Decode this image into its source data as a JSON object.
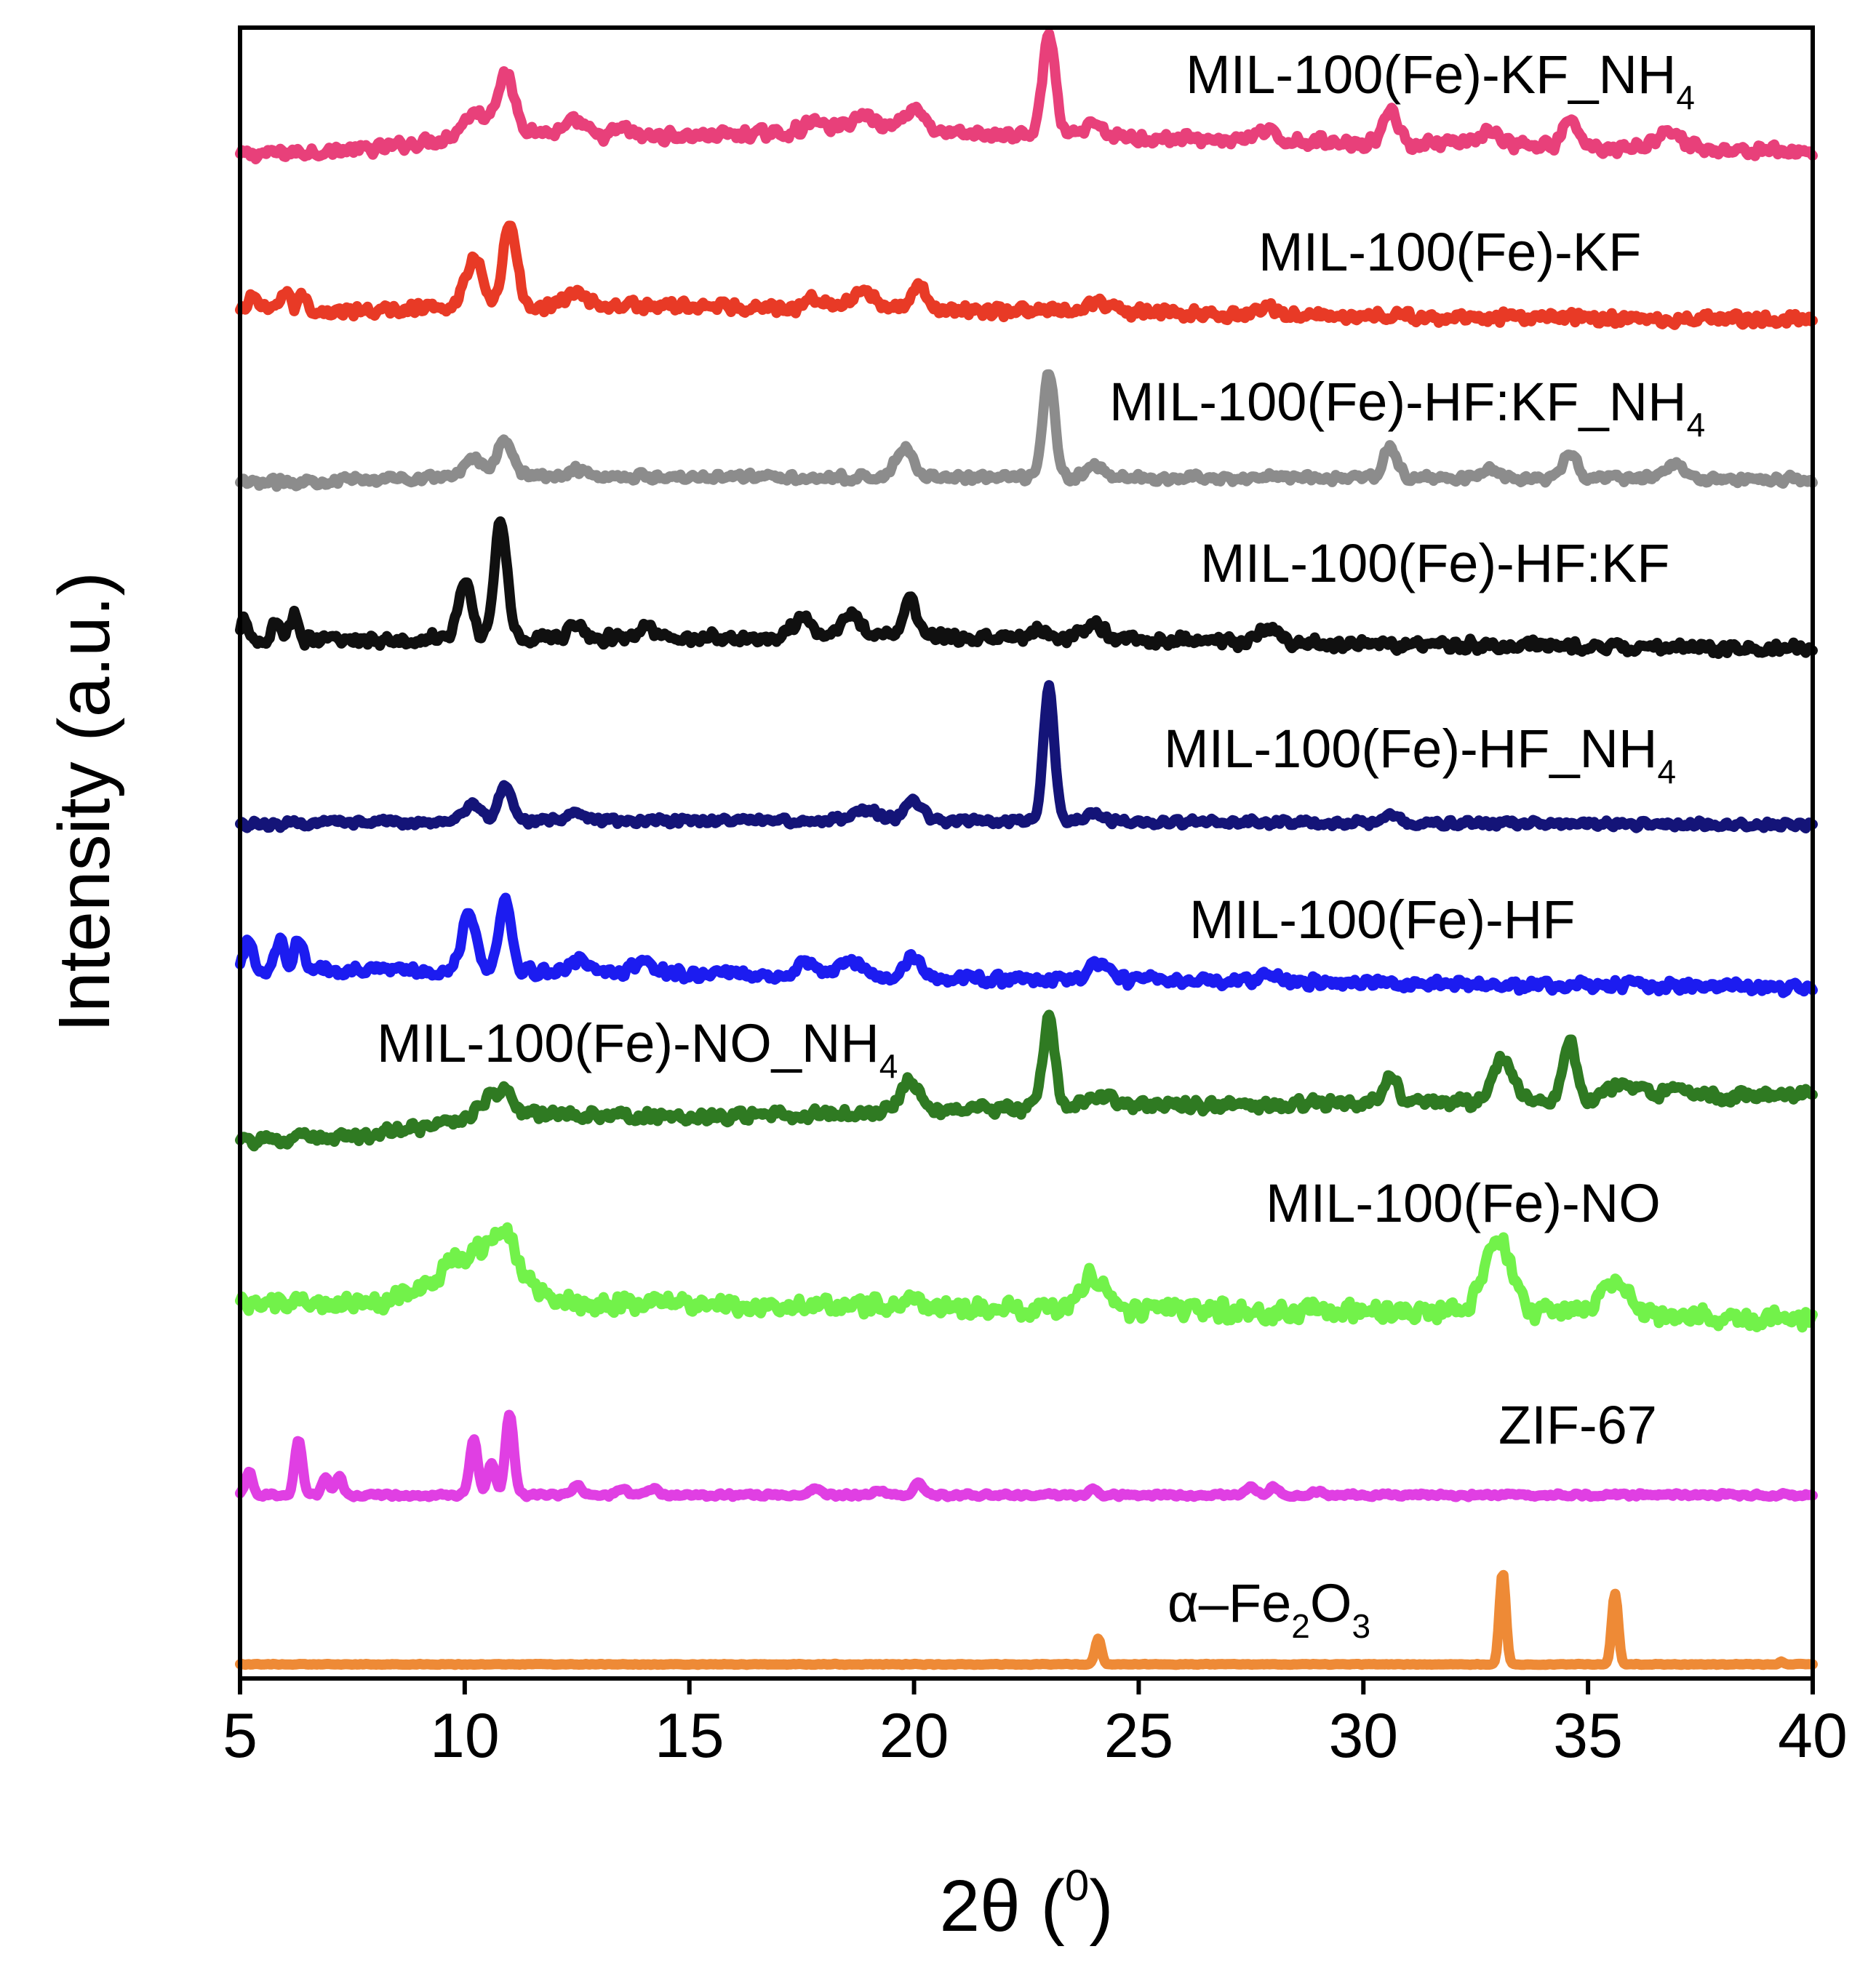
{
  "chart_data": {
    "type": "line",
    "title": "",
    "xlabel": "2θ (⁰)",
    "xlabel_parts": {
      "main": "2θ (",
      "sup": "0",
      "close": ")"
    },
    "ylabel": "Intensity (a.u.)",
    "xlim": [
      5,
      40
    ],
    "xticks": [
      5,
      10,
      15,
      20,
      25,
      30,
      35,
      40
    ],
    "yticks": [],
    "grid": false,
    "legend": "inline labels above each trace",
    "series": [
      {
        "name": "MIL-100(Fe)-KF_NH4",
        "label_main": "MIL-100(Fe)-KF_NH",
        "label_sub": "4",
        "color": "#E8407A",
        "baseline": 8.95,
        "noise": 0.05,
        "drift": [
          [
            5,
            0.0
          ],
          [
            8,
            0.04
          ],
          [
            11,
            0.18
          ],
          [
            13,
            0.12
          ],
          [
            18,
            0.16
          ],
          [
            22,
            0.14
          ],
          [
            28,
            0.1
          ],
          [
            40,
            0.02
          ]
        ],
        "peaks": [
          [
            10.2,
            0.15,
            0.25
          ],
          [
            10.9,
            0.38,
            0.2
          ],
          [
            12.5,
            0.1,
            0.2
          ],
          [
            13.5,
            0.06,
            0.2
          ],
          [
            17.8,
            0.07,
            0.25
          ],
          [
            18.9,
            0.12,
            0.35
          ],
          [
            20.0,
            0.18,
            0.25
          ],
          [
            23.0,
            0.72,
            0.14
          ],
          [
            24.0,
            0.08,
            0.2
          ],
          [
            27.8,
            0.06,
            0.2
          ],
          [
            30.6,
            0.25,
            0.15
          ],
          [
            32.8,
            0.1,
            0.2
          ],
          [
            34.6,
            0.2,
            0.15
          ],
          [
            36.8,
            0.12,
            0.3
          ]
        ]
      },
      {
        "name": "MIL-100(Fe)-KF",
        "label_main": "MIL-100(Fe)-KF",
        "label_sub": "",
        "color": "#E83A26",
        "baseline": 7.78,
        "noise": 0.05,
        "drift": [
          [
            5,
            0.06
          ],
          [
            8,
            0.06
          ],
          [
            10,
            0.1
          ],
          [
            15,
            0.1
          ],
          [
            20,
            0.07
          ],
          [
            25,
            0.05
          ],
          [
            30,
            0.03
          ],
          [
            40,
            0.0
          ]
        ],
        "peaks": [
          [
            5.3,
            0.12,
            0.1
          ],
          [
            6.0,
            0.15,
            0.1
          ],
          [
            6.4,
            0.12,
            0.1
          ],
          [
            10.2,
            0.34,
            0.18
          ],
          [
            11.0,
            0.58,
            0.15
          ],
          [
            12.5,
            0.1,
            0.2
          ],
          [
            17.8,
            0.08,
            0.2
          ],
          [
            18.9,
            0.1,
            0.3
          ],
          [
            20.1,
            0.16,
            0.18
          ],
          [
            24.1,
            0.08,
            0.25
          ],
          [
            27.8,
            0.05,
            0.2
          ]
        ]
      },
      {
        "name": "MIL-100(Fe)-HF:KF_NH4",
        "label_main": "MIL-100(Fe)-HF:KF_NH",
        "label_sub": "4",
        "color": "#8C8C8C",
        "baseline": 6.62,
        "noise": 0.035,
        "drift": [
          [
            5,
            0.0
          ],
          [
            10,
            0.05
          ],
          [
            15,
            0.05
          ],
          [
            20,
            0.04
          ],
          [
            25,
            0.04
          ],
          [
            40,
            0.03
          ]
        ],
        "peaks": [
          [
            10.2,
            0.14,
            0.2
          ],
          [
            10.9,
            0.26,
            0.18
          ],
          [
            12.5,
            0.05,
            0.2
          ],
          [
            19.8,
            0.2,
            0.2
          ],
          [
            23.0,
            0.74,
            0.13
          ],
          [
            24.0,
            0.08,
            0.2
          ],
          [
            30.6,
            0.22,
            0.15
          ],
          [
            32.8,
            0.07,
            0.2
          ],
          [
            34.6,
            0.18,
            0.15
          ],
          [
            36.9,
            0.1,
            0.25
          ]
        ]
      },
      {
        "name": "MIL-100(Fe)-HF:KF",
        "label_main": "MIL-100(Fe)-HF:KF",
        "label_sub": "",
        "color": "#101010",
        "baseline": 5.45,
        "noise": 0.05,
        "drift": [
          [
            5,
            0.05
          ],
          [
            8,
            0.06
          ],
          [
            10,
            0.08
          ],
          [
            14,
            0.07
          ],
          [
            20,
            0.08
          ],
          [
            25,
            0.06
          ],
          [
            30,
            0.03
          ],
          [
            40,
            0.0
          ]
        ],
        "peaks": [
          [
            5.1,
            0.15,
            0.08
          ],
          [
            5.8,
            0.15,
            0.1
          ],
          [
            6.2,
            0.18,
            0.1
          ],
          [
            10.0,
            0.4,
            0.14
          ],
          [
            10.8,
            0.82,
            0.14
          ],
          [
            12.5,
            0.1,
            0.15
          ],
          [
            14.0,
            0.07,
            0.2
          ],
          [
            17.5,
            0.14,
            0.2
          ],
          [
            18.6,
            0.16,
            0.25
          ],
          [
            19.9,
            0.28,
            0.15
          ],
          [
            22.8,
            0.06,
            0.2
          ],
          [
            24.0,
            0.1,
            0.25
          ],
          [
            27.9,
            0.1,
            0.2
          ]
        ]
      },
      {
        "name": "MIL-100(Fe)-HF_NH4",
        "label_main": "MIL-100(Fe)-HF_NH",
        "label_sub": "4",
        "color": "#141478",
        "baseline": 4.2,
        "noise": 0.03,
        "drift": [
          [
            5,
            0.0
          ],
          [
            10,
            0.03
          ],
          [
            15,
            0.03
          ],
          [
            20,
            0.03
          ],
          [
            40,
            0.0
          ]
        ],
        "peaks": [
          [
            10.2,
            0.12,
            0.18
          ],
          [
            10.9,
            0.24,
            0.15
          ],
          [
            12.5,
            0.05,
            0.2
          ],
          [
            18.9,
            0.08,
            0.3
          ],
          [
            20.0,
            0.14,
            0.18
          ],
          [
            23.0,
            0.95,
            0.12
          ],
          [
            24.0,
            0.05,
            0.2
          ],
          [
            30.6,
            0.06,
            0.15
          ]
        ]
      },
      {
        "name": "MIL-100(Fe)-HF",
        "label_main": "MIL-100(Fe)-HF",
        "label_sub": "",
        "color": "#1C1CF0",
        "baseline": 3.05,
        "noise": 0.045,
        "drift": [
          [
            5,
            0.12
          ],
          [
            8,
            0.12
          ],
          [
            10,
            0.12
          ],
          [
            14,
            0.1
          ],
          [
            20,
            0.06
          ],
          [
            25,
            0.05
          ],
          [
            30,
            0.03
          ],
          [
            40,
            0.0
          ]
        ],
        "peaks": [
          [
            5.2,
            0.22,
            0.1
          ],
          [
            5.9,
            0.22,
            0.1
          ],
          [
            6.3,
            0.22,
            0.1
          ],
          [
            10.1,
            0.4,
            0.16
          ],
          [
            10.9,
            0.5,
            0.14
          ],
          [
            12.5,
            0.08,
            0.2
          ],
          [
            14.0,
            0.08,
            0.25
          ],
          [
            17.6,
            0.1,
            0.2
          ],
          [
            18.6,
            0.12,
            0.3
          ],
          [
            20.0,
            0.16,
            0.18
          ],
          [
            24.1,
            0.1,
            0.25
          ],
          [
            27.9,
            0.06,
            0.2
          ]
        ]
      },
      {
        "name": "MIL-100(Fe)-NO_NH4",
        "label_main": "MIL-100(Fe)-NO_NH",
        "label_sub": "4",
        "color": "#2F7A22",
        "baseline": 1.95,
        "noise": 0.05,
        "drift": [
          [
            5,
            0.0
          ],
          [
            8,
            0.06
          ],
          [
            11,
            0.2
          ],
          [
            15,
            0.18
          ],
          [
            20,
            0.22
          ],
          [
            25,
            0.26
          ],
          [
            30,
            0.28
          ],
          [
            35,
            0.3
          ],
          [
            40,
            0.34
          ]
        ],
        "peaks": [
          [
            10.6,
            0.12,
            0.3
          ],
          [
            10.9,
            0.08,
            0.2
          ],
          [
            19.9,
            0.22,
            0.2
          ],
          [
            23.0,
            0.65,
            0.13
          ],
          [
            24.1,
            0.08,
            0.3
          ],
          [
            30.6,
            0.18,
            0.16
          ],
          [
            33.1,
            0.3,
            0.22
          ],
          [
            34.6,
            0.4,
            0.15
          ],
          [
            35.8,
            0.12,
            0.3
          ],
          [
            36.9,
            0.05,
            0.3
          ]
        ]
      },
      {
        "name": "MIL-100(Fe)-NO",
        "label_main": "MIL-100(Fe)-NO",
        "label_sub": "",
        "color": "#72F24A",
        "baseline": 0.7,
        "noise": 0.08,
        "drift": [
          [
            5,
            0.1
          ],
          [
            8,
            0.12
          ],
          [
            15,
            0.1
          ],
          [
            20,
            0.08
          ],
          [
            25,
            0.06
          ],
          [
            30,
            0.05
          ],
          [
            35,
            0.04
          ],
          [
            40,
            0.0
          ]
        ],
        "peaks": [
          [
            10.3,
            0.35,
            0.8
          ],
          [
            10.9,
            0.25,
            0.25
          ],
          [
            20.0,
            0.08,
            0.2
          ],
          [
            24.0,
            0.24,
            0.3
          ],
          [
            33.0,
            0.5,
            0.3
          ],
          [
            35.6,
            0.24,
            0.3
          ]
        ]
      },
      {
        "name": "ZIF-67",
        "label_main": "ZIF-67",
        "label_sub": "",
        "color": "#E03FE3",
        "baseline": -0.55,
        "noise": 0.015,
        "drift": [
          [
            5,
            0.0
          ],
          [
            40,
            0.0
          ]
        ],
        "peaks": [
          [
            5.2,
            0.16,
            0.08
          ],
          [
            6.3,
            0.4,
            0.08
          ],
          [
            6.9,
            0.12,
            0.08
          ],
          [
            7.2,
            0.14,
            0.08
          ],
          [
            10.2,
            0.4,
            0.09
          ],
          [
            10.6,
            0.22,
            0.09
          ],
          [
            11.0,
            0.58,
            0.09
          ],
          [
            12.5,
            0.07,
            0.1
          ],
          [
            13.5,
            0.05,
            0.1
          ],
          [
            14.2,
            0.05,
            0.1
          ],
          [
            17.8,
            0.05,
            0.1
          ],
          [
            19.2,
            0.04,
            0.1
          ],
          [
            20.1,
            0.08,
            0.1
          ],
          [
            24.0,
            0.04,
            0.1
          ],
          [
            27.5,
            0.06,
            0.1
          ],
          [
            28.0,
            0.06,
            0.1
          ],
          [
            29.0,
            0.03,
            0.1
          ]
        ]
      },
      {
        "name": "α-Fe2O3",
        "label_main": "α–Fe",
        "label_sub": "2",
        "label_main2": "O",
        "label_sub2": "3",
        "color": "#EE8A36",
        "baseline": -1.75,
        "noise": 0.004,
        "drift": [
          [
            5,
            0.0
          ],
          [
            40,
            0.0
          ]
        ],
        "peaks": [
          [
            24.1,
            0.18,
            0.07
          ],
          [
            33.1,
            0.65,
            0.07
          ],
          [
            35.6,
            0.5,
            0.07
          ],
          [
            39.3,
            0.02,
            0.05
          ]
        ]
      }
    ]
  }
}
